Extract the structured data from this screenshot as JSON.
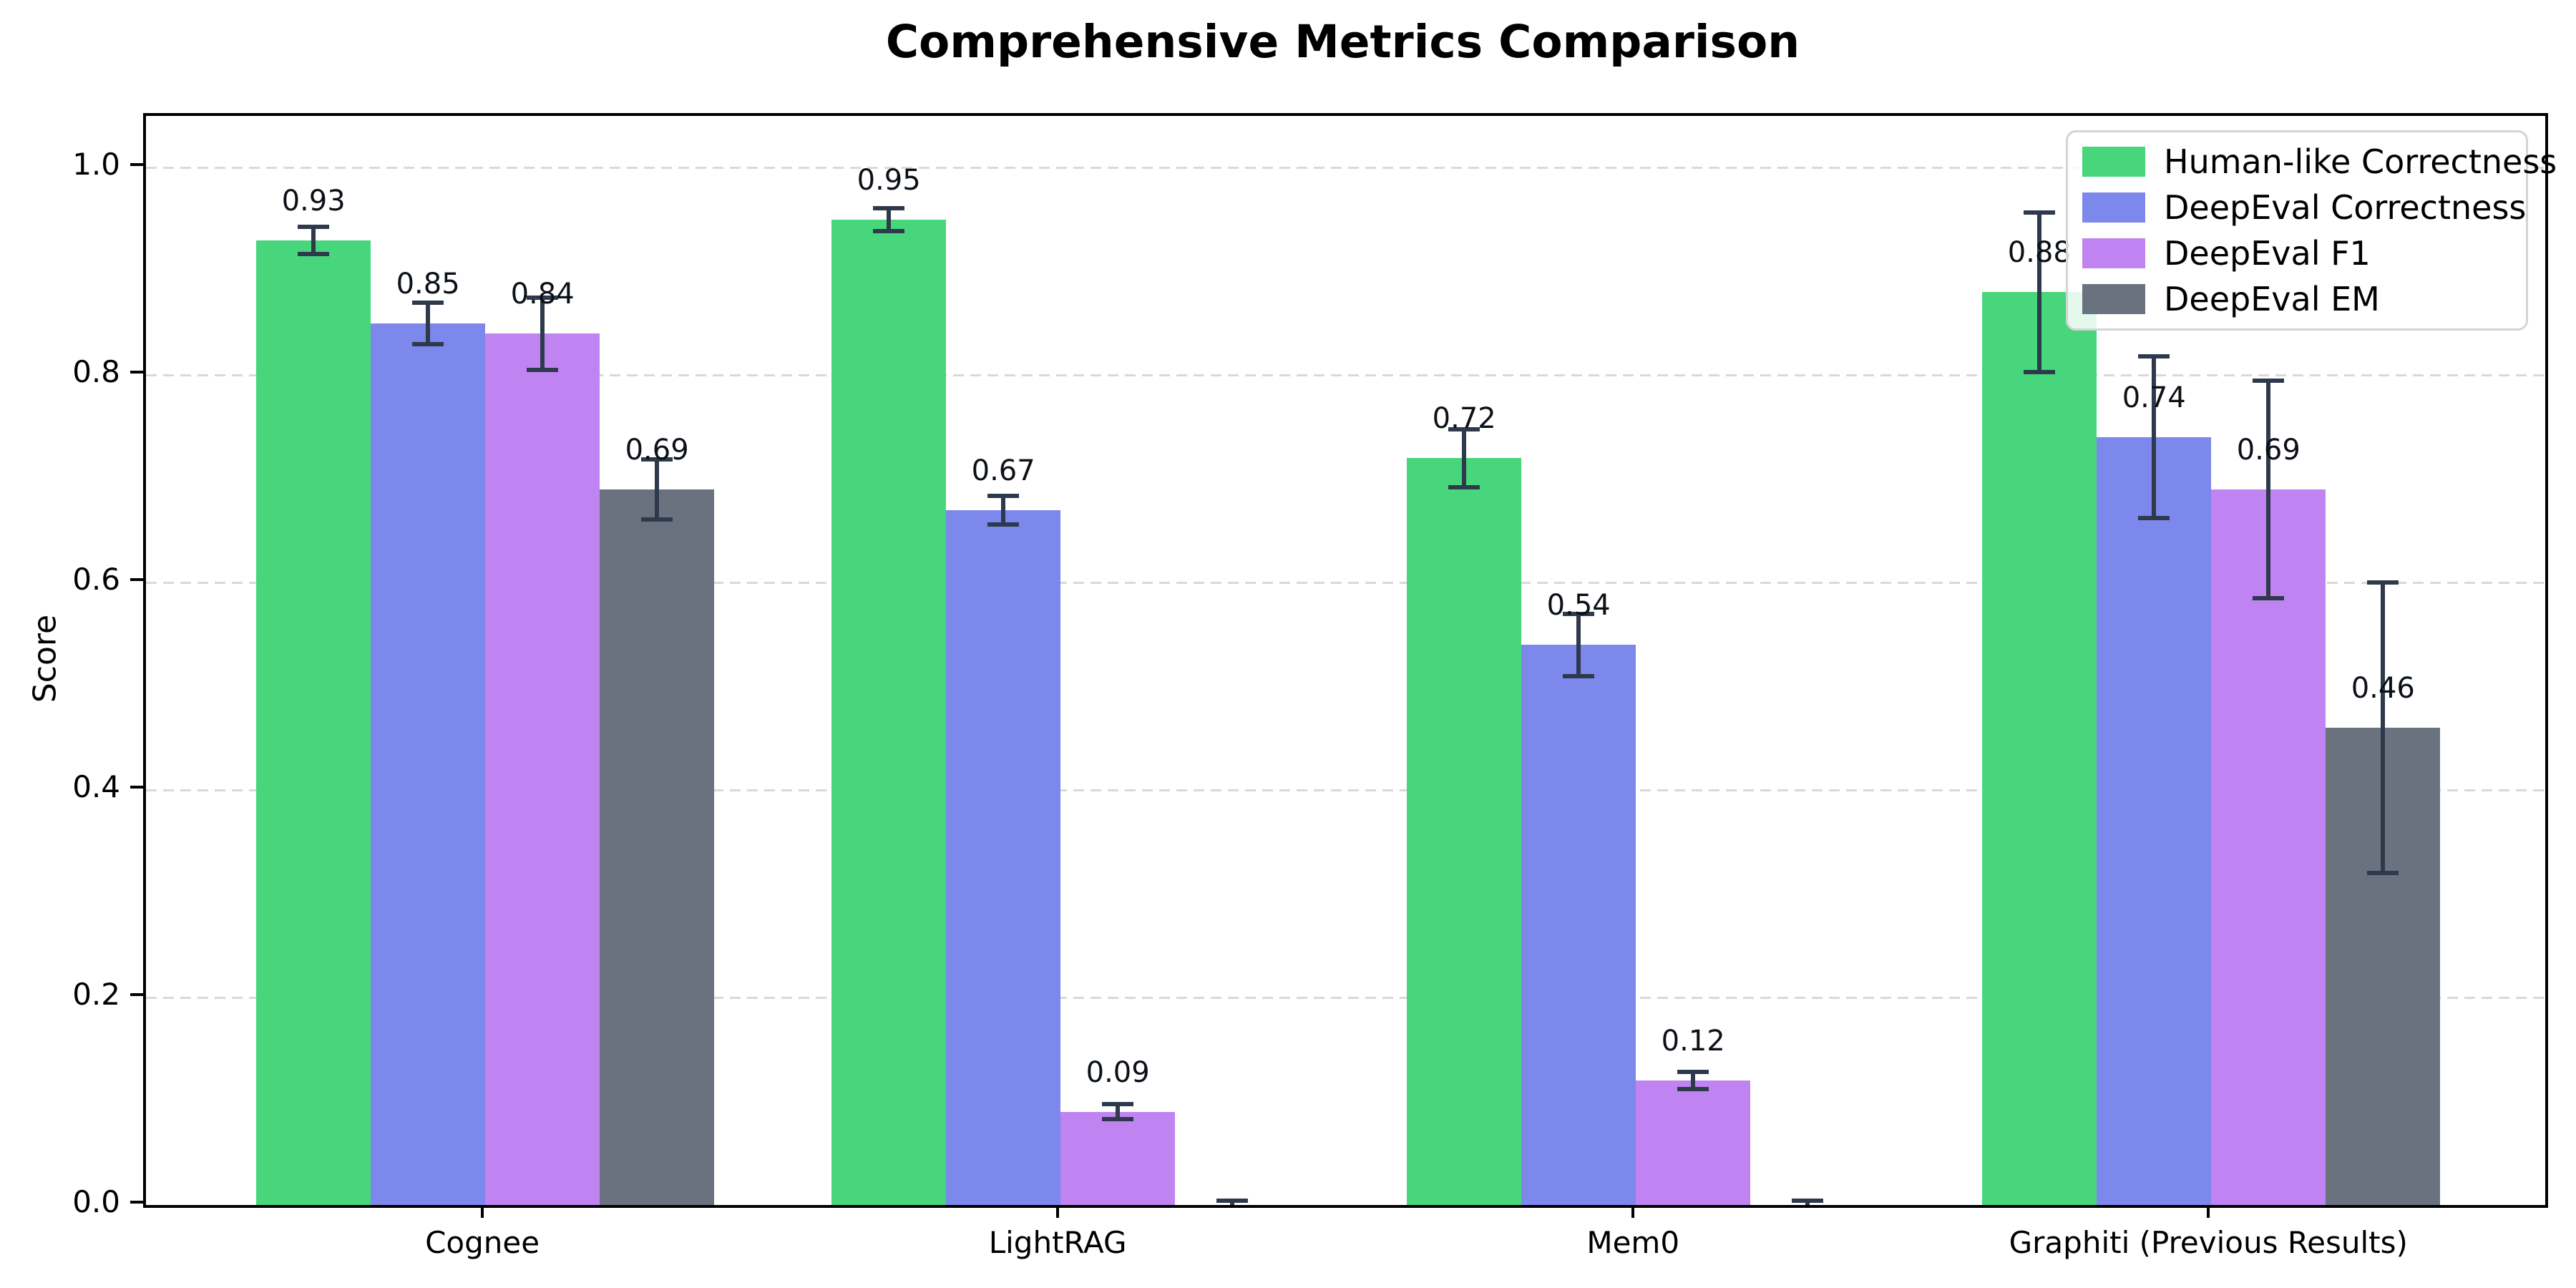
{
  "chart_data": {
    "type": "bar",
    "title": "Comprehensive Metrics Comparison",
    "xlabel": "",
    "ylabel": "Score",
    "ylim": [
      0,
      1.05
    ],
    "yticks": [
      "0.0",
      "0.2",
      "0.4",
      "0.6",
      "0.8",
      "1.0"
    ],
    "grid": "horizontal dashed",
    "legend_position": "upper right",
    "error_bar_color": "#2e3a4c",
    "categories": [
      "Cognee",
      "LightRAG",
      "Mem0",
      "Graphiti (Previous Results)"
    ],
    "series": [
      {
        "name": "Human-like Correctness",
        "color": "#48d67d",
        "values": [
          0.93,
          0.95,
          0.72,
          0.88
        ],
        "errors": [
          0.013,
          0.011,
          0.028,
          0.077
        ],
        "labels": [
          "0.93",
          "0.95",
          "0.72",
          "0.88"
        ]
      },
      {
        "name": "DeepEval Correctness",
        "color": "#7d88ec",
        "values": [
          0.85,
          0.67,
          0.54,
          0.74
        ],
        "errors": [
          0.02,
          0.014,
          0.03,
          0.078
        ],
        "labels": [
          "0.85",
          "0.67",
          "0.54",
          "0.74"
        ]
      },
      {
        "name": "DeepEval F1",
        "color": "#c084f2",
        "values": [
          0.84,
          0.09,
          0.12,
          0.69
        ],
        "errors": [
          0.035,
          0.007,
          0.008,
          0.105
        ],
        "labels": [
          "0.84",
          "0.09",
          "0.12",
          "0.69"
        ]
      },
      {
        "name": "DeepEval EM",
        "color": "#6a7280",
        "values": [
          0.69,
          0.0,
          0.0,
          0.46
        ],
        "errors": [
          0.029,
          0.004,
          0.004,
          0.14
        ],
        "labels": [
          "0.69",
          "",
          "",
          "0.46"
        ]
      }
    ]
  }
}
